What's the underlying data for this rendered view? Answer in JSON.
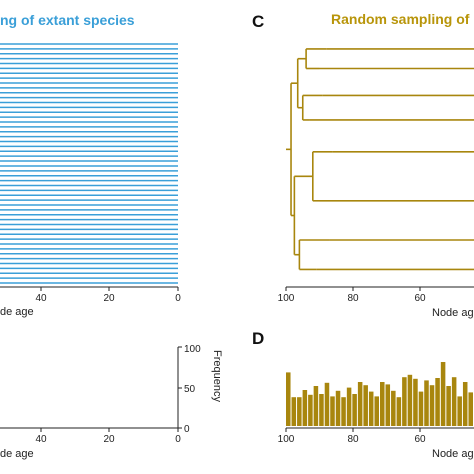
{
  "colors": {
    "extant": "#3a9fd8",
    "random": "#a8860e",
    "axis": "#222222"
  },
  "chart_data": [
    {
      "panel": "top-left",
      "type": "line",
      "title": "ng of extant species",
      "xlabel": "de age",
      "x_ticks": [
        40,
        20,
        0
      ],
      "xlim": [
        40,
        0
      ],
      "tip_count": 50,
      "series": [
        {
          "node_age_start": 0,
          "node_age_end": 0,
          "note": ""
        }
      ]
    },
    {
      "panel": "bottom-left",
      "type": "bar",
      "xlabel": "de age",
      "ylabel": "Frequency",
      "x_ticks": [
        40,
        20,
        0
      ],
      "y_ticks": [
        100,
        50,
        0
      ],
      "ylim": [
        0,
        100
      ],
      "values": []
    },
    {
      "panel": "C",
      "letter": "C",
      "type": "line",
      "title": "Random sampling of",
      "xlabel": "Node ag",
      "x_ticks": [
        100,
        80,
        60
      ],
      "xlim": [
        100,
        60
      ],
      "tree_segments": [
        [
          100,
          98.5,
          21.5,
          21.5
        ],
        [
          98.5,
          98.5,
          8,
          35
        ],
        [
          98.5,
          96.5,
          8,
          8
        ],
        [
          96.5,
          96.5,
          3,
          13
        ],
        [
          96.5,
          94,
          3,
          3
        ],
        [
          94,
          94,
          1,
          5
        ],
        [
          96.5,
          95,
          13,
          13
        ],
        [
          95,
          95,
          10.5,
          15.5
        ],
        [
          98.5,
          97.5,
          35,
          35
        ],
        [
          97.5,
          97.5,
          27,
          43
        ],
        [
          97.5,
          92,
          27,
          27
        ],
        [
          92,
          92,
          22,
          32
        ],
        [
          97.5,
          96,
          43,
          43
        ],
        [
          96,
          96,
          40,
          46
        ],
        [
          94,
          88,
          1,
          1
        ],
        [
          94,
          90,
          5,
          5
        ],
        [
          95,
          89,
          10.5,
          10.5
        ],
        [
          95,
          93,
          15.5,
          15.5
        ],
        [
          92,
          86,
          22,
          22
        ],
        [
          92,
          90,
          32,
          32
        ],
        [
          96,
          87,
          40,
          40
        ],
        [
          96,
          91,
          46,
          46
        ]
      ]
    },
    {
      "panel": "D",
      "letter": "D",
      "type": "bar",
      "xlabel": "Node ag",
      "x_ticks": [
        100,
        80,
        60
      ],
      "ylim": [
        0,
        100
      ],
      "x": [
        100,
        98.7,
        97.4,
        96.1,
        94.8,
        93.5,
        92.2,
        90.9,
        89.6,
        88.3,
        87,
        85.7,
        84.4,
        83.1,
        81.8,
        80.5,
        79.2,
        77.9,
        76.6,
        75.3,
        74,
        72.7,
        71.4,
        70.1,
        68.8,
        67.5,
        66.2,
        64.9,
        63.6,
        62.4,
        61.1,
        59.8,
        58.5,
        57.2
      ],
      "values": [
        67,
        36,
        36,
        45,
        39,
        50,
        40,
        54,
        37,
        44,
        36,
        48,
        40,
        55,
        51,
        43,
        37,
        55,
        52,
        44,
        36,
        61,
        64,
        59,
        43,
        57,
        51,
        60,
        80,
        50,
        61,
        37,
        55,
        42
      ]
    }
  ]
}
